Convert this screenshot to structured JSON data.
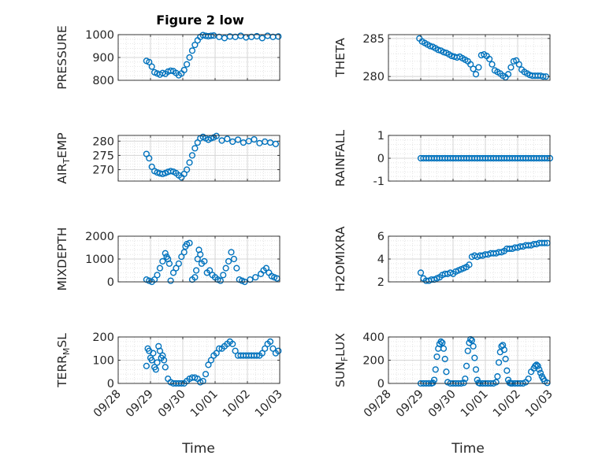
{
  "figure": {
    "title": "Figure 2 low",
    "x_axis_label": "Time",
    "x_ticks": [
      "09/28",
      "09/29",
      "09/30",
      "10/01",
      "10/02",
      "10/03"
    ]
  },
  "chart_data": [
    {
      "type": "scatter",
      "ylabel": "PRESSURE",
      "ylim": [
        800,
        1000
      ],
      "yticks": [
        800,
        900,
        1000
      ],
      "grid": true,
      "x_tick_labels_shown": false,
      "x": [
        "09/28 21:00",
        "09/28 23:00",
        "09/29 01:00",
        "09/29 03:00",
        "09/29 05:00",
        "09/29 07:00",
        "09/29 09:00",
        "09/29 11:00",
        "09/29 13:00",
        "09/29 15:00",
        "09/29 17:00",
        "09/29 19:00",
        "09/29 21:00",
        "09/29 23:00",
        "09/30 01:00",
        "09/30 03:00",
        "09/30 05:00",
        "09/30 07:00",
        "09/30 09:00",
        "09/30 11:00",
        "09/30 13:00",
        "09/30 15:00",
        "09/30 17:00",
        "09/30 19:00",
        "09/30 21:00",
        "09/30 23:00",
        "10/01 03:00",
        "10/01 07:00",
        "10/01 11:00",
        "10/01 15:00",
        "10/01 19:00",
        "10/01 23:00",
        "10/02 03:00",
        "10/02 07:00",
        "10/02 11:00",
        "10/02 15:00",
        "10/02 19:00",
        "10/02 23:00"
      ],
      "y": [
        885,
        880,
        860,
        835,
        830,
        825,
        832,
        828,
        838,
        842,
        840,
        832,
        822,
        830,
        845,
        870,
        900,
        930,
        955,
        975,
        990,
        998,
        995,
        993,
        995,
        996,
        990,
        985,
        992,
        990,
        995,
        988,
        990,
        993,
        985,
        995,
        990,
        992
      ]
    },
    {
      "type": "scatter",
      "ylabel": "THETA",
      "ylim": [
        279.5,
        285.5
      ],
      "yticks": [
        280,
        285
      ],
      "grid": true,
      "x_tick_labels_shown": false,
      "x": [
        "09/28 23:00",
        "09/29 01:00",
        "09/29 03:00",
        "09/29 05:00",
        "09/29 07:00",
        "09/29 09:00",
        "09/29 11:00",
        "09/29 13:00",
        "09/29 15:00",
        "09/29 17:00",
        "09/29 19:00",
        "09/29 21:00",
        "09/29 23:00",
        "09/30 01:00",
        "09/30 03:00",
        "09/30 05:00",
        "09/30 07:00",
        "09/30 09:00",
        "09/30 11:00",
        "09/30 13:00",
        "09/30 15:00",
        "09/30 17:00",
        "09/30 19:00",
        "09/30 21:00",
        "09/30 23:00",
        "10/01 01:00",
        "10/01 03:00",
        "10/01 05:00",
        "10/01 07:00",
        "10/01 09:00",
        "10/01 11:00",
        "10/01 13:00",
        "10/01 15:00",
        "10/01 17:00",
        "10/01 19:00",
        "10/01 21:00",
        "10/01 23:00",
        "10/02 01:00",
        "10/02 03:00",
        "10/02 05:00",
        "10/02 07:00",
        "10/02 09:00",
        "10/02 11:00",
        "10/02 13:00",
        "10/02 15:00",
        "10/02 17:00",
        "10/02 19:00",
        "10/02 21:00"
      ],
      "y": [
        285.0,
        284.6,
        284.4,
        284.2,
        284.0,
        283.9,
        283.7,
        283.5,
        283.4,
        283.2,
        283.1,
        282.9,
        282.7,
        282.6,
        282.5,
        282.6,
        282.4,
        282.2,
        282.0,
        281.6,
        281.0,
        280.3,
        281.2,
        282.8,
        282.9,
        282.7,
        282.3,
        281.6,
        280.8,
        280.6,
        280.4,
        280.1,
        279.9,
        280.3,
        281.2,
        282.0,
        282.1,
        281.6,
        280.9,
        280.6,
        280.4,
        280.2,
        280.1,
        280.1,
        280.1,
        280.1,
        280.0,
        280.0
      ]
    },
    {
      "type": "scatter",
      "ylabel": "AIR_TEMP",
      "ylim": [
        266,
        282
      ],
      "yticks": [
        270,
        275,
        280
      ],
      "grid": true,
      "x_tick_labels_shown": false,
      "x": [
        "09/28 21:00",
        "09/28 23:00",
        "09/29 01:00",
        "09/29 03:00",
        "09/29 05:00",
        "09/29 07:00",
        "09/29 09:00",
        "09/29 11:00",
        "09/29 13:00",
        "09/29 15:00",
        "09/29 17:00",
        "09/29 19:00",
        "09/29 21:00",
        "09/29 23:00",
        "09/30 01:00",
        "09/30 03:00",
        "09/30 05:00",
        "09/30 07:00",
        "09/30 09:00",
        "09/30 11:00",
        "09/30 13:00",
        "09/30 15:00",
        "09/30 17:00",
        "09/30 19:00",
        "09/30 21:00",
        "09/30 23:00",
        "10/01 01:00",
        "10/01 05:00",
        "10/01 09:00",
        "10/01 13:00",
        "10/01 17:00",
        "10/01 21:00",
        "10/02 01:00",
        "10/02 05:00",
        "10/02 09:00",
        "10/02 13:00",
        "10/02 17:00",
        "10/02 21:00"
      ],
      "y": [
        275.5,
        274.0,
        271.0,
        269.5,
        269.0,
        268.7,
        268.5,
        268.8,
        269.2,
        269.5,
        269.3,
        268.8,
        268.0,
        267.3,
        268.5,
        270.0,
        272.5,
        275.0,
        277.5,
        279.5,
        281.0,
        281.5,
        281.0,
        280.5,
        281.0,
        281.3,
        281.8,
        280.2,
        280.8,
        279.8,
        280.5,
        279.5,
        280.0,
        280.6,
        279.3,
        279.8,
        279.5,
        279.0
      ]
    },
    {
      "type": "scatter",
      "ylabel": "RAINFALL",
      "ylim": [
        -1,
        1
      ],
      "yticks": [
        -1,
        0,
        1
      ],
      "grid": true,
      "x_tick_labels_shown": false,
      "x_range": [
        "09/29 00:00",
        "10/03 00:00"
      ],
      "y": [
        0
      ]
    },
    {
      "type": "scatter",
      "ylabel": "MIXDEPTH",
      "ylim": [
        0,
        2000
      ],
      "yticks": [
        0,
        1000,
        2000
      ],
      "grid": true,
      "x_tick_labels_shown": false,
      "x": [
        "09/28 21:00",
        "09/28 23:00",
        "09/29 01:00",
        "09/29 03:00",
        "09/29 05:00",
        "09/29 07:00",
        "09/29 09:00",
        "09/29 11:00",
        "09/29 12:00",
        "09/29 13:00",
        "09/29 14:00",
        "09/29 15:00",
        "09/29 17:00",
        "09/29 19:00",
        "09/29 21:00",
        "09/29 23:00",
        "09/30 01:00",
        "09/30 02:00",
        "09/30 03:00",
        "09/30 05:00",
        "09/30 07:00",
        "09/30 09:00",
        "09/30 10:00",
        "09/30 11:00",
        "09/30 12:00",
        "09/30 13:00",
        "09/30 14:00",
        "09/30 16:00",
        "09/30 18:00",
        "09/30 20:00",
        "09/30 22:00",
        "10/01 00:00",
        "10/01 02:00",
        "10/01 04:00",
        "10/01 06:00",
        "10/01 08:00",
        "10/01 10:00",
        "10/01 12:00",
        "10/01 14:00",
        "10/01 16:00",
        "10/01 18:00",
        "10/01 20:00",
        "10/01 22:00",
        "10/02 02:00",
        "10/02 06:00",
        "10/02 10:00",
        "10/02 12:00",
        "10/02 14:00",
        "10/02 16:00",
        "10/02 18:00",
        "10/02 20:00",
        "10/02 22:00"
      ],
      "y": [
        100,
        50,
        0,
        100,
        300,
        600,
        900,
        1250,
        1100,
        1000,
        800,
        50,
        400,
        600,
        800,
        1100,
        1300,
        1550,
        1650,
        1700,
        100,
        200,
        500,
        1000,
        1400,
        1200,
        800,
        900,
        400,
        500,
        300,
        200,
        100,
        50,
        300,
        600,
        900,
        1300,
        1000,
        600,
        100,
        50,
        0,
        100,
        200,
        350,
        500,
        600,
        400,
        250,
        200,
        150
      ]
    },
    {
      "type": "scatter",
      "ylabel": "H2OMIXRA",
      "ylim": [
        2,
        6
      ],
      "yticks": [
        2,
        4,
        6
      ],
      "grid": true,
      "x_tick_labels_shown": false,
      "x": [
        "09/29 00:00",
        "09/29 02:00",
        "09/29 04:00",
        "09/29 06:00",
        "09/29 08:00",
        "09/29 10:00",
        "09/29 12:00",
        "09/29 14:00",
        "09/29 16:00",
        "09/29 18:00",
        "09/29 20:00",
        "09/29 22:00",
        "09/30 00:00",
        "09/30 02:00",
        "09/30 04:00",
        "09/30 06:00",
        "09/30 08:00",
        "09/30 10:00",
        "09/30 12:00",
        "09/30 14:00",
        "09/30 16:00",
        "09/30 18:00",
        "09/30 20:00",
        "09/30 22:00",
        "10/01 00:00",
        "10/01 02:00",
        "10/01 04:00",
        "10/01 06:00",
        "10/01 08:00",
        "10/01 10:00",
        "10/01 12:00",
        "10/01 14:00",
        "10/01 16:00",
        "10/01 18:00",
        "10/01 20:00",
        "10/01 22:00",
        "10/02 00:00",
        "10/02 02:00",
        "10/02 04:00",
        "10/02 06:00",
        "10/02 08:00",
        "10/02 10:00",
        "10/02 12:00",
        "10/02 14:00",
        "10/02 16:00",
        "10/02 18:00",
        "10/02 20:00",
        "10/02 22:00"
      ],
      "y": [
        2.8,
        2.3,
        2.1,
        2.1,
        2.2,
        2.2,
        2.3,
        2.4,
        2.6,
        2.7,
        2.7,
        2.8,
        2.7,
        2.9,
        3.0,
        3.1,
        3.2,
        3.3,
        3.5,
        4.2,
        4.3,
        4.2,
        4.3,
        4.3,
        4.4,
        4.4,
        4.5,
        4.5,
        4.5,
        4.6,
        4.6,
        4.7,
        4.9,
        4.9,
        4.9,
        5.0,
        5.0,
        5.1,
        5.1,
        5.2,
        5.2,
        5.2,
        5.3,
        5.3,
        5.4,
        5.4,
        5.4,
        5.4
      ]
    },
    {
      "type": "scatter",
      "ylabel": "TERR_MSL",
      "ylim": [
        0,
        200
      ],
      "yticks": [
        0,
        100,
        200
      ],
      "grid": true,
      "x_tick_labels_shown": true,
      "x": [
        "09/28 21:00",
        "09/28 22:00",
        "09/28 23:00",
        "09/29 00:00",
        "09/29 01:00",
        "09/29 02:00",
        "09/29 03:00",
        "09/29 04:00",
        "09/29 05:00",
        "09/29 06:00",
        "09/29 07:00",
        "09/29 08:00",
        "09/29 09:00",
        "09/29 10:00",
        "09/29 11:00",
        "09/29 13:00",
        "09/29 15:00",
        "09/29 17:00",
        "09/29 19:00",
        "09/29 21:00",
        "09/29 23:00",
        "09/30 01:00",
        "09/30 03:00",
        "09/30 05:00",
        "09/30 07:00",
        "09/30 09:00",
        "09/30 11:00",
        "09/30 13:00",
        "09/30 15:00",
        "09/30 17:00",
        "09/30 19:00",
        "09/30 21:00",
        "09/30 23:00",
        "10/01 01:00",
        "10/01 03:00",
        "10/01 05:00",
        "10/01 07:00",
        "10/01 09:00",
        "10/01 11:00",
        "10/01 13:00",
        "10/01 15:00",
        "10/01 17:00",
        "10/01 19:00",
        "10/01 21:00",
        "10/01 23:00",
        "10/02 01:00",
        "10/02 03:00",
        "10/02 05:00",
        "10/02 07:00",
        "10/02 09:00",
        "10/02 11:00",
        "10/02 13:00",
        "10/02 15:00",
        "10/02 17:00",
        "10/02 19:00",
        "10/02 21:00",
        "10/02 23:00"
      ],
      "y": [
        75,
        150,
        140,
        110,
        100,
        130,
        70,
        60,
        90,
        160,
        140,
        110,
        120,
        100,
        70,
        20,
        5,
        0,
        0,
        0,
        0,
        0,
        10,
        20,
        25,
        25,
        20,
        5,
        10,
        40,
        80,
        100,
        120,
        130,
        150,
        150,
        160,
        170,
        180,
        170,
        140,
        120,
        120,
        120,
        120,
        120,
        120,
        120,
        120,
        120,
        130,
        150,
        170,
        180,
        150,
        130,
        140
      ]
    },
    {
      "type": "scatter",
      "ylabel": "SUN_FLUX",
      "ylim": [
        0,
        400
      ],
      "yticks": [
        0,
        200,
        400
      ],
      "grid": true,
      "x_tick_labels_shown": true,
      "x": [
        "09/29 00:00",
        "09/29 02:00",
        "09/29 04:00",
        "09/29 06:00",
        "09/29 08:00",
        "09/29 09:00",
        "09/29 10:00",
        "09/29 11:00",
        "09/29 12:00",
        "09/29 13:00",
        "09/29 14:00",
        "09/29 15:00",
        "09/29 16:00",
        "09/29 17:00",
        "09/29 18:00",
        "09/29 19:00",
        "09/29 20:00",
        "09/29 22:00",
        "09/30 00:00",
        "09/30 02:00",
        "09/30 04:00",
        "09/30 06:00",
        "09/30 08:00",
        "09/30 09:00",
        "09/30 10:00",
        "09/30 11:00",
        "09/30 12:00",
        "09/30 13:00",
        "09/30 14:00",
        "09/30 15:00",
        "09/30 16:00",
        "09/30 17:00",
        "09/30 18:00",
        "09/30 19:00",
        "09/30 20:00",
        "09/30 22:00",
        "10/01 00:00",
        "10/01 02:00",
        "10/01 04:00",
        "10/01 06:00",
        "10/01 08:00",
        "10/01 09:00",
        "10/01 10:00",
        "10/01 11:00",
        "10/01 12:00",
        "10/01 13:00",
        "10/01 14:00",
        "10/01 15:00",
        "10/01 16:00",
        "10/01 17:00",
        "10/01 18:00",
        "10/01 19:00",
        "10/01 20:00",
        "10/01 22:00",
        "10/02 00:00",
        "10/02 02:00",
        "10/02 04:00",
        "10/02 06:00",
        "10/02 08:00",
        "10/02 10:00",
        "10/02 12:00",
        "10/02 13:00",
        "10/02 14:00",
        "10/02 15:00",
        "10/02 16:00",
        "10/02 17:00",
        "10/02 18:00",
        "10/02 19:00",
        "10/02 20:00",
        "10/02 22:00"
      ],
      "y": [
        0,
        0,
        0,
        0,
        0,
        5,
        30,
        120,
        230,
        300,
        340,
        360,
        350,
        300,
        210,
        100,
        10,
        0,
        0,
        0,
        0,
        0,
        5,
        40,
        150,
        280,
        350,
        380,
        370,
        320,
        220,
        120,
        30,
        5,
        0,
        0,
        0,
        0,
        0,
        0,
        10,
        60,
        180,
        270,
        320,
        330,
        290,
        210,
        110,
        30,
        5,
        0,
        0,
        0,
        0,
        0,
        0,
        10,
        40,
        100,
        130,
        150,
        160,
        150,
        120,
        90,
        60,
        40,
        20,
        5
      ]
    }
  ]
}
